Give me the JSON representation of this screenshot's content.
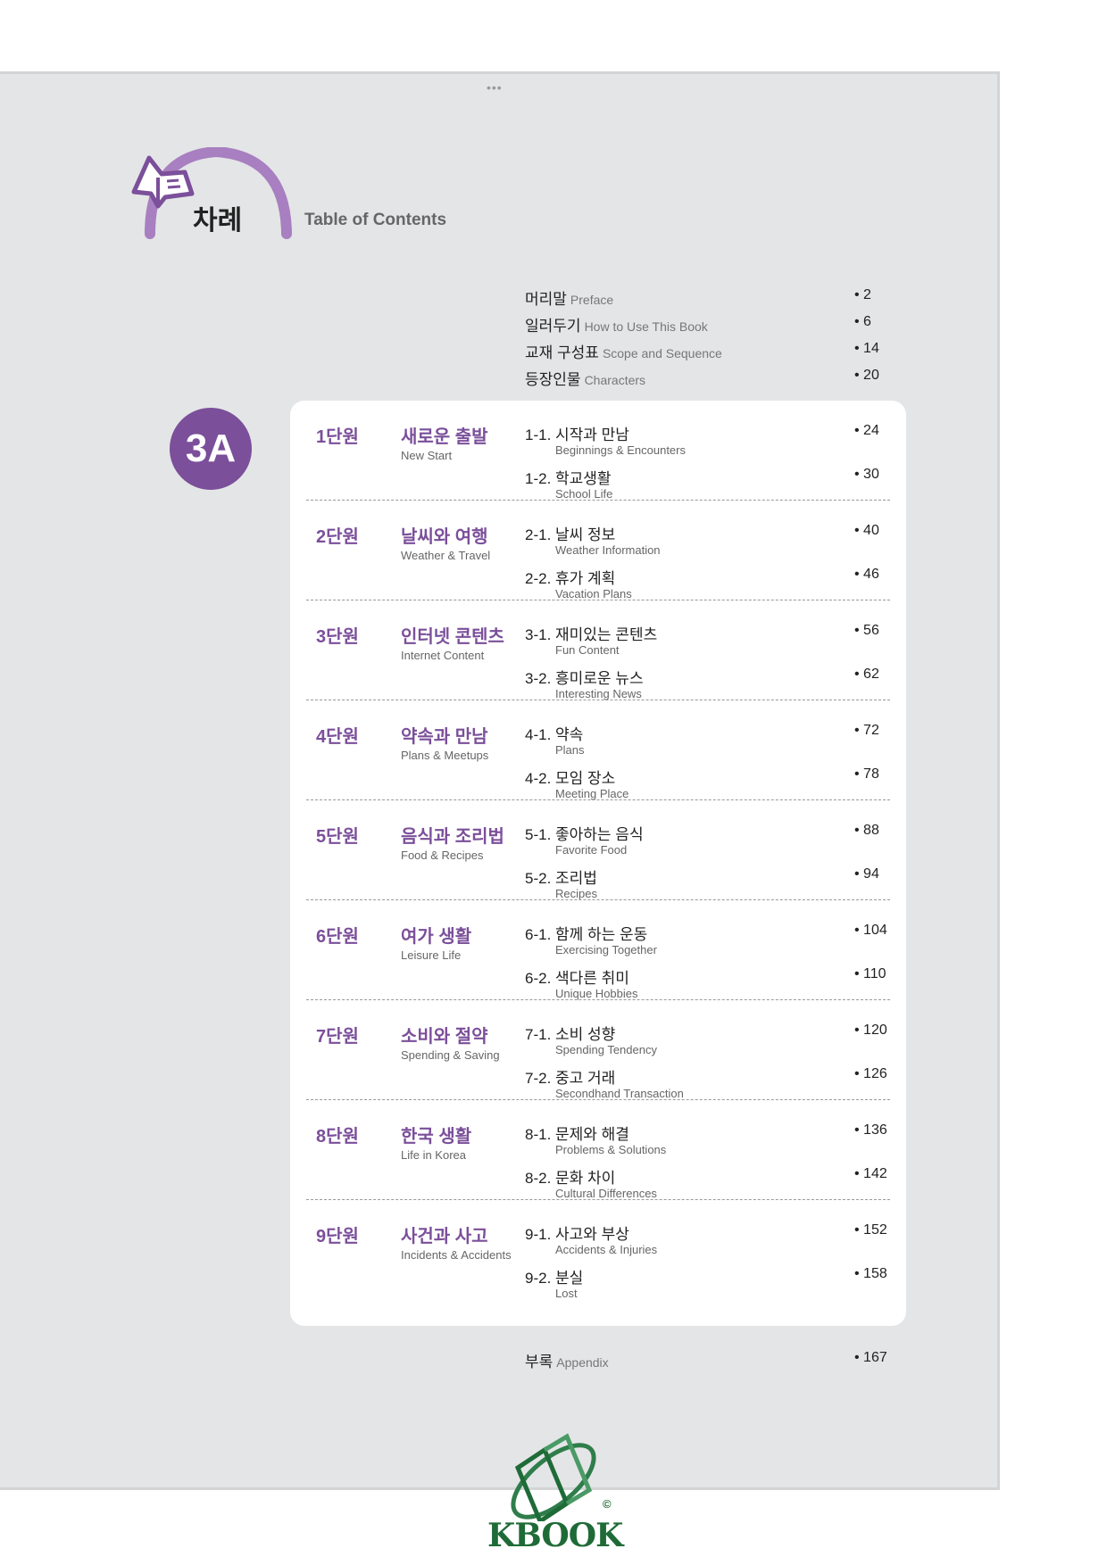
{
  "header": {
    "title_ko": "차례",
    "title_en": "Table of Contents",
    "menu_dots": "•••"
  },
  "colors": {
    "accent": "#7b4f9a",
    "arc": "#a87fc0",
    "background": "#e4e5e7",
    "logo": "#1f6b38"
  },
  "front_matter": [
    {
      "ko": "머리말",
      "en": "Preface",
      "page": "• 2"
    },
    {
      "ko": "일러두기",
      "en": "How to Use This Book",
      "page": "• 6"
    },
    {
      "ko": "교재 구성표",
      "en": "Scope and Sequence",
      "page": "• 14"
    },
    {
      "ko": "등장인물",
      "en": "Characters",
      "page": "• 20"
    }
  ],
  "volume_badge": "3A",
  "units": [
    {
      "no": "1단원",
      "ko": "새로운 출발",
      "en": "New Start",
      "lessons": [
        {
          "ko": "1-1. 시작과 만남",
          "en": "Beginnings & Encounters",
          "page": "• 24"
        },
        {
          "ko": "1-2. 학교생활",
          "en": "School Life",
          "page": "• 30"
        }
      ]
    },
    {
      "no": "2단원",
      "ko": "날씨와 여행",
      "en": "Weather & Travel",
      "lessons": [
        {
          "ko": "2-1. 날씨 정보",
          "en": "Weather Information",
          "page": "• 40"
        },
        {
          "ko": "2-2. 휴가 계획",
          "en": "Vacation Plans",
          "page": "• 46"
        }
      ]
    },
    {
      "no": "3단원",
      "ko": "인터넷 콘텐츠",
      "en": "Internet Content",
      "lessons": [
        {
          "ko": "3-1. 재미있는 콘텐츠",
          "en": "Fun Content",
          "page": "• 56"
        },
        {
          "ko": "3-2. 흥미로운 뉴스",
          "en": "Interesting News",
          "page": "• 62"
        }
      ]
    },
    {
      "no": "4단원",
      "ko": "약속과 만남",
      "en": "Plans & Meetups",
      "lessons": [
        {
          "ko": "4-1. 약속",
          "en": "Plans",
          "page": "• 72"
        },
        {
          "ko": "4-2. 모임 장소",
          "en": "Meeting Place",
          "page": "• 78"
        }
      ]
    },
    {
      "no": "5단원",
      "ko": "음식과 조리법",
      "en": "Food & Recipes",
      "lessons": [
        {
          "ko": "5-1. 좋아하는 음식",
          "en": "Favorite Food",
          "page": "• 88"
        },
        {
          "ko": "5-2. 조리법",
          "en": "Recipes",
          "page": "• 94"
        }
      ]
    },
    {
      "no": "6단원",
      "ko": "여가 생활",
      "en": "Leisure Life",
      "lessons": [
        {
          "ko": "6-1. 함께 하는 운동",
          "en": "Exercising Together",
          "page": "• 104"
        },
        {
          "ko": "6-2. 색다른 취미",
          "en": "Unique Hobbies",
          "page": "• 110"
        }
      ]
    },
    {
      "no": "7단원",
      "ko": "소비와 절약",
      "en": "Spending & Saving",
      "lessons": [
        {
          "ko": "7-1. 소비 성향",
          "en": "Spending Tendency",
          "page": "• 120"
        },
        {
          "ko": "7-2. 중고 거래",
          "en": "Secondhand Transaction",
          "page": "• 126"
        }
      ]
    },
    {
      "no": "8단원",
      "ko": "한국 생활",
      "en": "Life in Korea",
      "lessons": [
        {
          "ko": "8-1. 문제와 해결",
          "en": "Problems & Solutions",
          "page": "• 136"
        },
        {
          "ko": "8-2. 문화 차이",
          "en": "Cultural Differences",
          "page": "• 142"
        }
      ]
    },
    {
      "no": "9단원",
      "ko": "사건과 사고",
      "en": "Incidents & Accidents",
      "lessons": [
        {
          "ko": "9-1. 사고와 부상",
          "en": "Accidents & Injuries",
          "page": "• 152"
        },
        {
          "ko": "9-2. 분실",
          "en": "Lost",
          "page": "• 158"
        }
      ]
    }
  ],
  "appendix": {
    "ko": "부록",
    "en": "Appendix",
    "page": "• 167"
  },
  "watermark": {
    "text": "KBOOK",
    "copyright": "©"
  }
}
